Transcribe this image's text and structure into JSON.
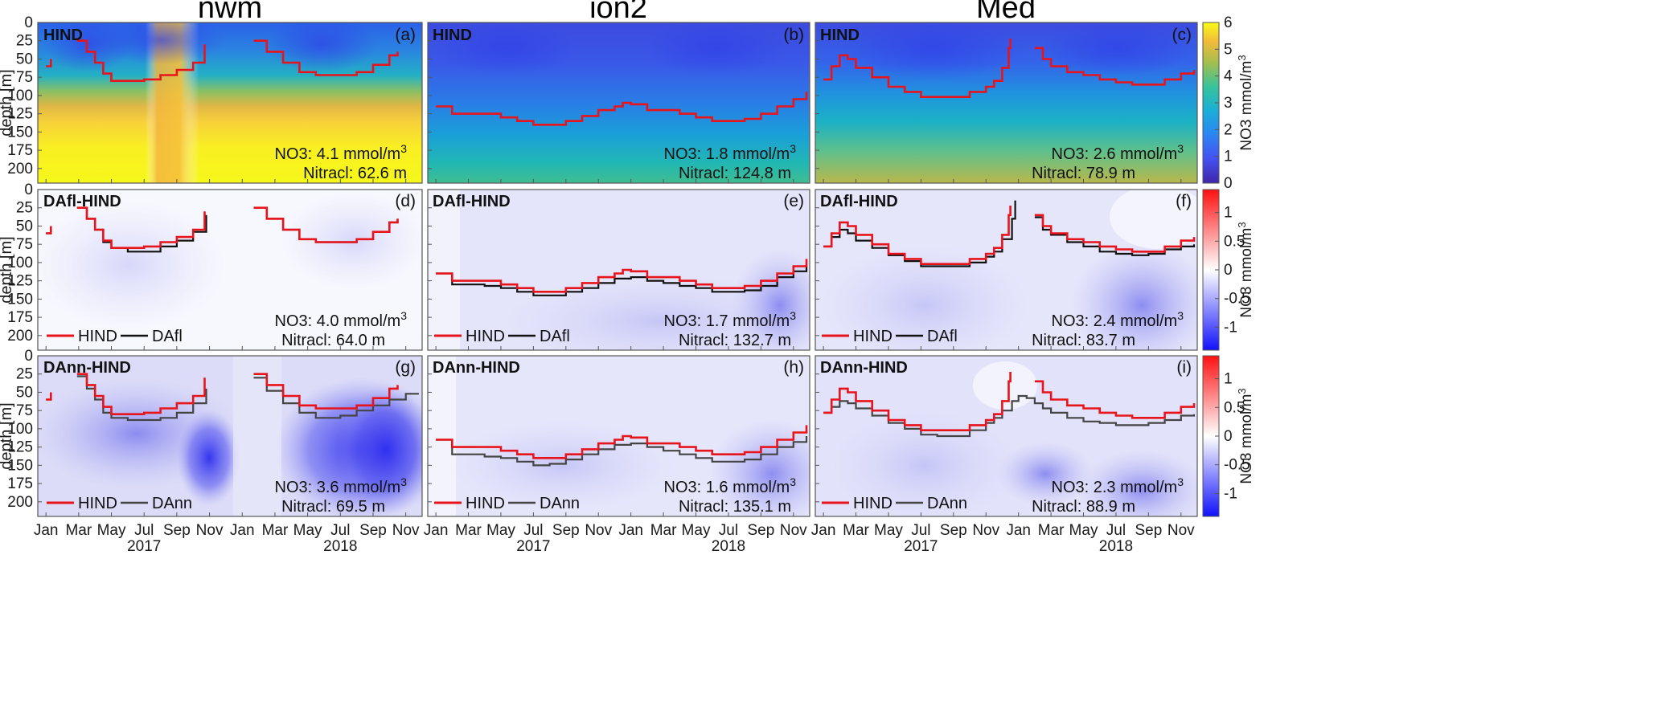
{
  "chart_data": {
    "type": "heatmap",
    "column_titles": [
      "nwm",
      "ion2",
      "Med"
    ],
    "ylabel": "depth [m]",
    "ylim": [
      0,
      220
    ],
    "yticks": [
      "0",
      "25",
      "50",
      "75",
      "100",
      "125",
      "150",
      "175",
      "200"
    ],
    "xtick_labels": [
      "Jan",
      "Mar",
      "May",
      "Jul",
      "Sep",
      "Nov",
      "Jan",
      "Mar",
      "May",
      "Jul",
      "Sep",
      "Nov"
    ],
    "year_labels": [
      "2017",
      "2018"
    ],
    "colorbars": [
      {
        "label": "NO3 mmol/m",
        "sup": "3",
        "ticks": [
          "0",
          "1",
          "2",
          "3",
          "4",
          "5",
          "6"
        ],
        "range": [
          0,
          6
        ],
        "colormap": "parula"
      },
      {
        "label": "NO3 mmol/m",
        "sup": "3",
        "ticks": [
          "1",
          "0.5",
          "0",
          "-0.5",
          "-1"
        ],
        "range": [
          -1.4,
          1.4
        ],
        "colormap": "blue-white-red"
      },
      {
        "label": "NO3 mmol/m",
        "sup": "3",
        "ticks": [
          "1",
          "0.5",
          "0",
          "-0.5",
          "-1"
        ],
        "range": [
          -1.4,
          1.4
        ],
        "colormap": "blue-white-red"
      }
    ],
    "panels": [
      {
        "letter": "(a)",
        "tag": "HIND",
        "region": "nwm",
        "no3_text": "NO3: 4.1 mmol/m",
        "no3_sup": "3",
        "nitracl_text": "Nitracl: 62.6 m",
        "no3": 4.1,
        "nitracline_m": 62.6
      },
      {
        "letter": "(b)",
        "tag": "HIND",
        "region": "ion2",
        "no3_text": "NO3: 1.8 mmol/m",
        "no3_sup": "3",
        "nitracl_text": "Nitracl: 124.8 m",
        "no3": 1.8,
        "nitracline_m": 124.8
      },
      {
        "letter": "(c)",
        "tag": "HIND",
        "region": "Med",
        "no3_text": "NO3: 2.6 mmol/m",
        "no3_sup": "3",
        "nitracl_text": "Nitracl: 78.9 m",
        "no3": 2.6,
        "nitracline_m": 78.9
      },
      {
        "letter": "(d)",
        "tag": "DAfl-HIND",
        "region": "nwm",
        "no3_text": "NO3: 4.0 mmol/m",
        "no3_sup": "3",
        "nitracl_text": "Nitracl: 64.0 m",
        "no3": 4.0,
        "nitracline_m": 64.0,
        "legend": [
          "HIND",
          "DAfl"
        ]
      },
      {
        "letter": "(e)",
        "tag": "DAfl-HIND",
        "region": "ion2",
        "no3_text": "NO3: 1.7 mmol/m",
        "no3_sup": "3",
        "nitracl_text": "Nitracl: 132.7 m",
        "no3": 1.7,
        "nitracline_m": 132.7,
        "legend": [
          "HIND",
          "DAfl"
        ]
      },
      {
        "letter": "(f)",
        "tag": "DAfl-HIND",
        "region": "Med",
        "no3_text": "NO3: 2.4 mmol/m",
        "no3_sup": "3",
        "nitracl_text": "Nitracl: 83.7 m",
        "no3": 2.4,
        "nitracline_m": 83.7,
        "legend": [
          "HIND",
          "DAfl"
        ]
      },
      {
        "letter": "(g)",
        "tag": "DAnn-HIND",
        "region": "nwm",
        "no3_text": "NO3: 3.6 mmol/m",
        "no3_sup": "3",
        "nitracl_text": "Nitracl: 69.5 m",
        "no3": 3.6,
        "nitracline_m": 69.5,
        "legend": [
          "HIND",
          "DAnn"
        ]
      },
      {
        "letter": "(h)",
        "tag": "DAnn-HIND",
        "region": "ion2",
        "no3_text": "NO3: 1.6 mmol/m",
        "no3_sup": "3",
        "nitracl_text": "Nitracl: 135.1 m",
        "no3": 1.6,
        "nitracline_m": 135.1,
        "legend": [
          "HIND",
          "DAnn"
        ]
      },
      {
        "letter": "(i)",
        "tag": "DAnn-HIND",
        "region": "Med",
        "no3_text": "NO3: 2.3 mmol/m",
        "no3_sup": "3",
        "nitracl_text": "Nitracl: 88.9 m",
        "no3": 2.3,
        "nitracline_m": 88.9,
        "legend": [
          "HIND",
          "DAnn"
        ]
      }
    ],
    "nitracline_series": {
      "nwm": {
        "HIND": [
          [
            0,
            60
          ],
          [
            0.3,
            50
          ],
          [
            1.2,
            null
          ],
          [
            1.9,
            25
          ],
          [
            2.5,
            40
          ],
          [
            3,
            55
          ],
          [
            3.5,
            70
          ],
          [
            4,
            80
          ],
          [
            5,
            80
          ],
          [
            6,
            78
          ],
          [
            7,
            72
          ],
          [
            8,
            65
          ],
          [
            9,
            55
          ],
          [
            9.7,
            30
          ],
          [
            10.2,
            null
          ],
          [
            12.3,
            null
          ],
          [
            12.7,
            25
          ],
          [
            13.5,
            40
          ],
          [
            14.5,
            55
          ],
          [
            15.5,
            68
          ],
          [
            16.5,
            72
          ],
          [
            18,
            72
          ],
          [
            19,
            68
          ],
          [
            20,
            58
          ],
          [
            21,
            45
          ],
          [
            21.5,
            40
          ],
          [
            22.8,
            null
          ]
        ],
        "DAfl": [
          [
            0,
            60
          ],
          [
            0.3,
            50
          ],
          [
            1.2,
            null
          ],
          [
            1.9,
            25
          ],
          [
            2.5,
            40
          ],
          [
            3,
            55
          ],
          [
            3.5,
            72
          ],
          [
            4,
            80
          ],
          [
            5,
            85
          ],
          [
            6,
            85
          ],
          [
            7,
            78
          ],
          [
            8,
            70
          ],
          [
            9,
            58
          ],
          [
            9.8,
            35
          ],
          [
            10.2,
            null
          ],
          [
            12.3,
            null
          ],
          [
            12.7,
            25
          ],
          [
            13.5,
            40
          ],
          [
            14.5,
            55
          ],
          [
            15.5,
            68
          ],
          [
            16.5,
            72
          ],
          [
            18,
            72
          ],
          [
            19,
            68
          ],
          [
            20,
            58
          ],
          [
            21,
            45
          ],
          [
            21.5,
            40
          ],
          [
            22.8,
            null
          ]
        ],
        "DAnn": [
          [
            0,
            60
          ],
          [
            0.3,
            52
          ],
          [
            1.2,
            null
          ],
          [
            1.9,
            28
          ],
          [
            2.5,
            45
          ],
          [
            3,
            60
          ],
          [
            3.5,
            78
          ],
          [
            4,
            85
          ],
          [
            5,
            88
          ],
          [
            6,
            88
          ],
          [
            7,
            85
          ],
          [
            8,
            78
          ],
          [
            9,
            65
          ],
          [
            9.8,
            45
          ],
          [
            10.2,
            null
          ],
          [
            12.3,
            null
          ],
          [
            12.7,
            30
          ],
          [
            13.5,
            48
          ],
          [
            14.5,
            65
          ],
          [
            15.5,
            78
          ],
          [
            16.5,
            85
          ],
          [
            18,
            82
          ],
          [
            19,
            75
          ],
          [
            20,
            68
          ],
          [
            21,
            60
          ],
          [
            22,
            52
          ],
          [
            22.8,
            52
          ]
        ]
      },
      "ion2": {
        "HIND": [
          [
            0,
            115
          ],
          [
            1,
            125
          ],
          [
            3,
            125
          ],
          [
            4,
            130
          ],
          [
            5,
            135
          ],
          [
            6,
            140
          ],
          [
            7,
            140
          ],
          [
            8,
            135
          ],
          [
            9,
            128
          ],
          [
            10,
            120
          ],
          [
            11,
            115
          ],
          [
            11.5,
            110
          ],
          [
            12,
            112
          ],
          [
            13,
            120
          ],
          [
            14,
            120
          ],
          [
            15,
            125
          ],
          [
            16,
            130
          ],
          [
            17,
            135
          ],
          [
            18,
            135
          ],
          [
            19,
            132
          ],
          [
            20,
            125
          ],
          [
            21,
            115
          ],
          [
            22,
            105
          ],
          [
            22.8,
            95
          ]
        ],
        "DAfl": [
          [
            0,
            115
          ],
          [
            1,
            130
          ],
          [
            3,
            132
          ],
          [
            4,
            135
          ],
          [
            5,
            140
          ],
          [
            6,
            145
          ],
          [
            7,
            145
          ],
          [
            8,
            140
          ],
          [
            9,
            135
          ],
          [
            10,
            128
          ],
          [
            11,
            122
          ],
          [
            12,
            120
          ],
          [
            13,
            125
          ],
          [
            14,
            128
          ],
          [
            15,
            132
          ],
          [
            16,
            135
          ],
          [
            17,
            140
          ],
          [
            18,
            140
          ],
          [
            19,
            138
          ],
          [
            20,
            132
          ],
          [
            21,
            120
          ],
          [
            22,
            112
          ],
          [
            22.8,
            105
          ]
        ],
        "DAnn": [
          [
            0,
            115
          ],
          [
            1,
            135
          ],
          [
            3,
            138
          ],
          [
            4,
            140
          ],
          [
            5,
            145
          ],
          [
            6,
            150
          ],
          [
            7,
            148
          ],
          [
            8,
            142
          ],
          [
            9,
            135
          ],
          [
            10,
            128
          ],
          [
            11,
            122
          ],
          [
            12,
            120
          ],
          [
            13,
            125
          ],
          [
            14,
            130
          ],
          [
            15,
            135
          ],
          [
            16,
            140
          ],
          [
            17,
            145
          ],
          [
            18,
            145
          ],
          [
            19,
            142
          ],
          [
            20,
            135
          ],
          [
            21,
            125
          ],
          [
            22,
            118
          ],
          [
            22.8,
            110
          ]
        ]
      },
      "Med": {
        "HIND": [
          [
            0,
            78
          ],
          [
            0.5,
            60
          ],
          [
            1,
            45
          ],
          [
            1.5,
            50
          ],
          [
            2,
            62
          ],
          [
            3,
            75
          ],
          [
            4,
            88
          ],
          [
            5,
            95
          ],
          [
            6,
            102
          ],
          [
            7,
            102
          ],
          [
            8,
            102
          ],
          [
            9,
            95
          ],
          [
            10,
            88
          ],
          [
            10.5,
            80
          ],
          [
            11,
            62
          ],
          [
            11.4,
            35
          ],
          [
            11.5,
            22
          ],
          [
            12.2,
            null
          ],
          [
            13,
            35
          ],
          [
            13.5,
            50
          ],
          [
            14,
            60
          ],
          [
            15,
            68
          ],
          [
            16,
            72
          ],
          [
            17,
            78
          ],
          [
            18,
            82
          ],
          [
            19,
            85
          ],
          [
            20,
            85
          ],
          [
            21,
            78
          ],
          [
            22,
            70
          ],
          [
            22.8,
            65
          ]
        ],
        "DAfl": [
          [
            0,
            78
          ],
          [
            0.5,
            65
          ],
          [
            1,
            55
          ],
          [
            1.5,
            60
          ],
          [
            2,
            70
          ],
          [
            3,
            80
          ],
          [
            4,
            90
          ],
          [
            5,
            98
          ],
          [
            6,
            105
          ],
          [
            7,
            105
          ],
          [
            8,
            105
          ],
          [
            9,
            100
          ],
          [
            10,
            92
          ],
          [
            10.5,
            85
          ],
          [
            11,
            68
          ],
          [
            11.6,
            40
          ],
          [
            11.8,
            15
          ],
          [
            12.2,
            null
          ],
          [
            13,
            38
          ],
          [
            13.5,
            55
          ],
          [
            14,
            62
          ],
          [
            15,
            72
          ],
          [
            16,
            78
          ],
          [
            17,
            85
          ],
          [
            18,
            88
          ],
          [
            19,
            90
          ],
          [
            20,
            88
          ],
          [
            21,
            82
          ],
          [
            22,
            78
          ],
          [
            22.8,
            75
          ]
        ],
        "DAnn": [
          [
            0,
            78
          ],
          [
            0.5,
            70
          ],
          [
            1,
            62
          ],
          [
            1.5,
            65
          ],
          [
            2,
            72
          ],
          [
            3,
            82
          ],
          [
            4,
            92
          ],
          [
            5,
            100
          ],
          [
            6,
            108
          ],
          [
            7,
            110
          ],
          [
            8,
            110
          ],
          [
            9,
            102
          ],
          [
            10,
            92
          ],
          [
            10.5,
            85
          ],
          [
            11,
            75
          ],
          [
            11.6,
            62
          ],
          [
            12,
            55
          ],
          [
            12.5,
            58
          ],
          [
            13,
            65
          ],
          [
            13.5,
            72
          ],
          [
            14,
            78
          ],
          [
            15,
            85
          ],
          [
            16,
            90
          ],
          [
            17,
            92
          ],
          [
            18,
            95
          ],
          [
            19,
            95
          ],
          [
            20,
            92
          ],
          [
            21,
            88
          ],
          [
            22,
            82
          ],
          [
            22.8,
            80
          ]
        ]
      }
    },
    "colors": {
      "HIND": "#e8141c",
      "DAfl": "#111111",
      "DAnn": "#444444"
    }
  }
}
